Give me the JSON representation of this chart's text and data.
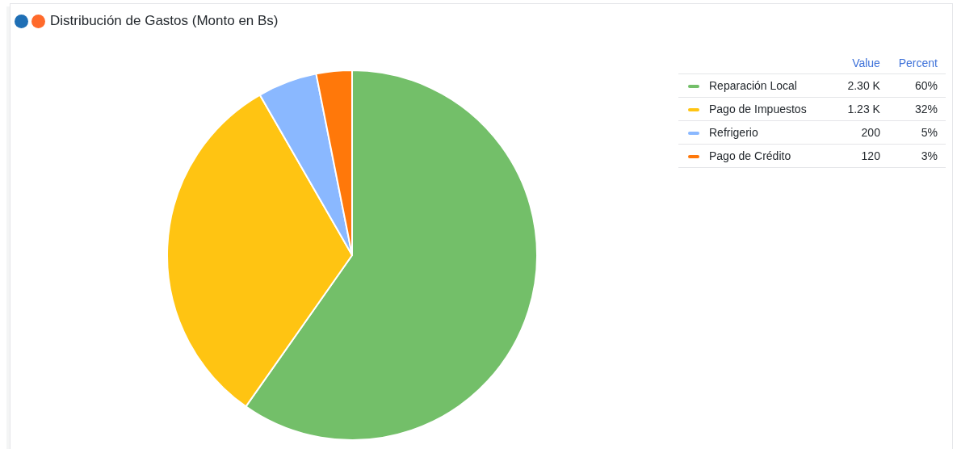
{
  "chart_data": {
    "type": "pie",
    "title": "Distribución de Gastos (Monto en Bs)",
    "categories": [
      "Reparación Local",
      "Pago de Impuestos",
      "Refrigerio",
      "Pago de Crédito"
    ],
    "values": [
      2300,
      1230,
      200,
      120
    ],
    "value_labels": [
      "2.30 K",
      "1.23 K",
      "200",
      "120"
    ],
    "colors": [
      "#73bf69",
      "#ffc412",
      "#8ab8ff",
      "#ff780a"
    ],
    "legend": "right",
    "annotations": [
      "Value",
      "Percent",
      "60%",
      "32%",
      "5%",
      "3%"
    ]
  }
}
